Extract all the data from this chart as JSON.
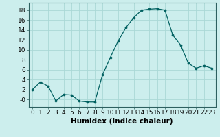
{
  "x": [
    0,
    1,
    2,
    3,
    4,
    5,
    6,
    7,
    8,
    9,
    10,
    11,
    12,
    13,
    14,
    15,
    16,
    17,
    18,
    19,
    20,
    21,
    22,
    23
  ],
  "y": [
    2,
    3.5,
    2.7,
    -0.3,
    1,
    0.9,
    -0.3,
    -0.5,
    -0.5,
    5,
    8.5,
    11.8,
    14.5,
    16.5,
    18,
    18.2,
    18.3,
    18,
    13,
    11,
    7.3,
    6.3,
    6.8,
    6.3
  ],
  "xlabel": "Humidex (Indice chaleur)",
  "bg_color": "#cceeed",
  "line_color": "#006060",
  "marker_color": "#006060",
  "grid_color": "#aad8d6",
  "ylim": [
    -1.5,
    19.5
  ],
  "xlim": [
    -0.5,
    23.5
  ],
  "yticks": [
    0,
    2,
    4,
    6,
    8,
    10,
    12,
    14,
    16,
    18
  ],
  "ytick_labels": [
    "-0",
    "2",
    "4",
    "6",
    "8",
    "10",
    "12",
    "14",
    "16",
    "18"
  ],
  "xticks": [
    0,
    1,
    2,
    3,
    4,
    5,
    6,
    7,
    8,
    9,
    10,
    11,
    12,
    13,
    14,
    15,
    16,
    17,
    18,
    19,
    20,
    21,
    22,
    23
  ],
  "xtick_labels": [
    "0",
    "1",
    "2",
    "3",
    "4",
    "5",
    "6",
    "7",
    "8",
    "9",
    "10",
    "11",
    "12",
    "13",
    "14",
    "15",
    "16",
    "17",
    "18",
    "19",
    "20",
    "21",
    "22",
    "23"
  ],
  "tick_fontsize": 6.5,
  "xlabel_fontsize": 7.5
}
